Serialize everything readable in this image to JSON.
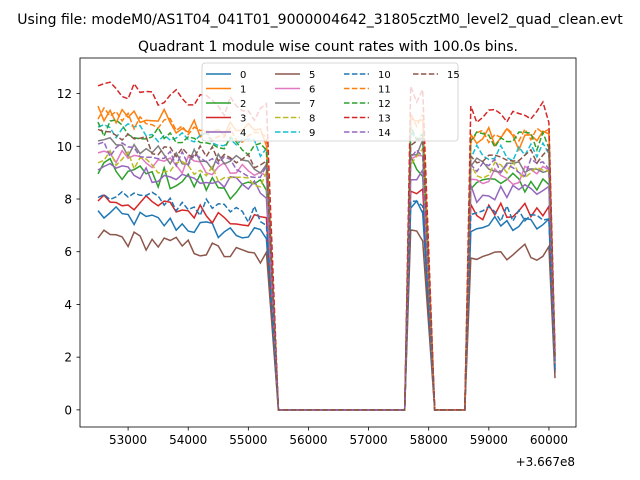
{
  "chart_data": {
    "type": "line",
    "suptitle": "Using file: modeM0/AS1T04_041T01_9000004642_31805cztM0_level2_quad_clean.evt",
    "title": "Quadrant 1 module wise count rates with 100.0s bins.",
    "xlabel": "",
    "ylabel": "",
    "x_offset_label": "+3.667e8",
    "xlim": [
      52200,
      60450
    ],
    "ylim": [
      -0.65,
      13.35
    ],
    "xticks": [
      53000,
      54000,
      55000,
      56000,
      57000,
      58000,
      59000,
      60000
    ],
    "yticks": [
      0,
      2,
      4,
      6,
      8,
      10,
      12
    ],
    "legend_position": "top-center",
    "segments": [
      {
        "x_start": 52500,
        "x_end": 55300
      },
      {
        "x_start": 57700,
        "x_end": 57900
      },
      {
        "x_start": 58700,
        "x_end": 60000
      }
    ],
    "series": [
      {
        "name": "0",
        "color": "#1f77b4",
        "dash": "solid",
        "seg_means": [
          7.0,
          7.7,
          7.0
        ],
        "noise": 0.35
      },
      {
        "name": "1",
        "color": "#ff7f0e",
        "dash": "solid",
        "seg_means": [
          10.9,
          11.0,
          10.3
        ],
        "noise": 0.45
      },
      {
        "name": "2",
        "color": "#2ca02c",
        "dash": "solid",
        "seg_means": [
          8.7,
          9.3,
          8.6
        ],
        "noise": 0.45
      },
      {
        "name": "3",
        "color": "#d62728",
        "dash": "solid",
        "seg_means": [
          7.6,
          8.4,
          7.5
        ],
        "noise": 0.35
      },
      {
        "name": "4",
        "color": "#9467bd",
        "dash": "solid",
        "seg_means": [
          8.8,
          8.8,
          8.2
        ],
        "noise": 0.35
      },
      {
        "name": "5",
        "color": "#8c564b",
        "dash": "solid",
        "seg_means": [
          6.2,
          6.6,
          6.0
        ],
        "noise": 0.35
      },
      {
        "name": "6",
        "color": "#e377c2",
        "dash": "solid",
        "seg_means": [
          9.3,
          9.5,
          8.9
        ],
        "noise": 0.35
      },
      {
        "name": "7",
        "color": "#7f7f7f",
        "dash": "solid",
        "seg_means": [
          9.6,
          10.0,
          9.3
        ],
        "noise": 0.35
      },
      {
        "name": "8",
        "color": "#bcbd22",
        "dash": "dashed",
        "seg_means": [
          9.2,
          9.6,
          9.1
        ],
        "noise": 0.35
      },
      {
        "name": "9",
        "color": "#17becf",
        "dash": "dashed",
        "seg_means": [
          10.3,
          10.4,
          9.8
        ],
        "noise": 0.35
      },
      {
        "name": "10",
        "color": "#1f77b4",
        "dash": "dashed",
        "seg_means": [
          7.8,
          8.0,
          7.5
        ],
        "noise": 0.35
      },
      {
        "name": "11",
        "color": "#ff7f0e",
        "dash": "dashed",
        "seg_means": [
          10.7,
          11.0,
          10.4
        ],
        "noise": 0.35
      },
      {
        "name": "12",
        "color": "#2ca02c",
        "dash": "dashed",
        "seg_means": [
          10.3,
          10.6,
          10.2
        ],
        "noise": 0.35
      },
      {
        "name": "13",
        "color": "#d62728",
        "dash": "dashed",
        "seg_means": [
          11.7,
          11.9,
          11.3
        ],
        "noise": 0.45
      },
      {
        "name": "14",
        "color": "#9467bd",
        "dash": "dashed",
        "seg_means": [
          9.5,
          9.7,
          9.2
        ],
        "noise": 0.35
      },
      {
        "name": "15",
        "color": "#8c564b",
        "dash": "dashed",
        "seg_means": [
          9.9,
          10.2,
          9.6
        ],
        "noise": 0.35
      }
    ]
  }
}
